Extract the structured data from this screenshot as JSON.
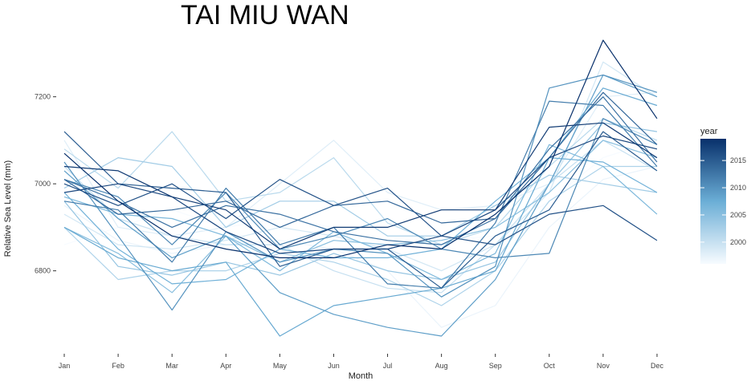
{
  "chart_data": {
    "type": "line",
    "title": "TAI MIU WAN",
    "xlabel": "Month",
    "ylabel": "Relative Sea Level (mm)",
    "categories": [
      "Jan",
      "Feb",
      "Mar",
      "Apr",
      "May",
      "Jun",
      "Jul",
      "Aug",
      "Sep",
      "Oct",
      "Nov",
      "Dec"
    ],
    "ylim": [
      6615,
      7345
    ],
    "yticks": [
      6800,
      7000,
      7200
    ],
    "grid": false,
    "color_scale": {
      "title": "year",
      "min": 1996,
      "max": 2019,
      "ticks": [
        2000,
        2005,
        2010,
        2015
      ],
      "low_color": "#f7fbff",
      "mid_color": "#6baed6",
      "high_color": "#08306b"
    },
    "legend_position": "right",
    "series": [
      {
        "year": 1996,
        "values": [
          6860,
          6900,
          6940,
          6900,
          6920,
          6900,
          6860,
          6870,
          6880,
          6960,
          7060,
          7100
        ]
      },
      {
        "year": 1997,
        "values": [
          6950,
          6870,
          6840,
          6860,
          6870,
          6850,
          6800,
          6670,
          6720,
          6900,
          7010,
          7040
        ]
      },
      {
        "year": 1998,
        "values": [
          7100,
          6900,
          6880,
          6900,
          7000,
          7100,
          6980,
          6940,
          6950,
          7000,
          7200,
          7210
        ]
      },
      {
        "year": 1999,
        "values": [
          6930,
          6860,
          6850,
          6870,
          6900,
          6880,
          6850,
          6800,
          6860,
          6980,
          7280,
          7200
        ]
      },
      {
        "year": 2000,
        "values": [
          7040,
          6920,
          6880,
          6860,
          6860,
          6800,
          6760,
          6750,
          6860,
          7000,
          7100,
          7030
        ]
      },
      {
        "year": 2001,
        "values": [
          7080,
          6990,
          7120,
          6960,
          6980,
          7060,
          6910,
          6860,
          6900,
          7040,
          7150,
          7100
        ]
      },
      {
        "year": 2002,
        "values": [
          6900,
          6780,
          6800,
          6800,
          6840,
          6820,
          6780,
          6720,
          6800,
          6960,
          7040,
          7040
        ]
      },
      {
        "year": 2003,
        "values": [
          6990,
          7060,
          7040,
          6900,
          6960,
          6960,
          6880,
          6880,
          6950,
          7020,
          7000,
          6980
        ]
      },
      {
        "year": 2004,
        "values": [
          6960,
          6810,
          6790,
          6820,
          6790,
          6840,
          6800,
          6780,
          6820,
          7000,
          7140,
          7120
        ]
      },
      {
        "year": 2005,
        "values": [
          6900,
          6840,
          6750,
          6880,
          6820,
          6870,
          6860,
          6870,
          6900,
          6980,
          7100,
          7060
        ]
      },
      {
        "year": 2006,
        "values": [
          6970,
          6930,
          6920,
          6880,
          6800,
          6890,
          6840,
          6780,
          6840,
          7090,
          7040,
          6930
        ]
      },
      {
        "year": 2007,
        "values": [
          6980,
          6850,
          6770,
          6780,
          6850,
          6830,
          6830,
          6850,
          6960,
          7060,
          7050,
          6980
        ]
      },
      {
        "year": 2008,
        "values": [
          6900,
          6830,
          6800,
          6820,
          6650,
          6720,
          6740,
          6760,
          6800,
          7060,
          7220,
          7180
        ]
      },
      {
        "year": 2009,
        "values": [
          7030,
          6920,
          6830,
          6880,
          6750,
          6700,
          6670,
          6650,
          6780,
          7000,
          7250,
          7200
        ]
      },
      {
        "year": 2010,
        "values": [
          7050,
          6880,
          6710,
          6890,
          6820,
          6850,
          6840,
          6740,
          6810,
          7220,
          7250,
          7210
        ]
      },
      {
        "year": 2011,
        "values": [
          7010,
          6970,
          6860,
          6980,
          6850,
          6880,
          6920,
          6850,
          6830,
          6840,
          7150,
          7090
        ]
      },
      {
        "year": 2012,
        "values": [
          6960,
          6940,
          6820,
          6990,
          6860,
          6900,
          6770,
          6760,
          6910,
          7190,
          7180,
          7040
        ]
      },
      {
        "year": 2013,
        "values": [
          7010,
          6960,
          6900,
          6950,
          6930,
          6890,
          6870,
          6860,
          6920,
          7080,
          7200,
          7050
        ]
      },
      {
        "year": 2014,
        "values": [
          7010,
          6930,
          6940,
          6960,
          6900,
          6950,
          6960,
          6910,
          6920,
          7060,
          7210,
          7090
        ]
      },
      {
        "year": 2015,
        "values": [
          7120,
          7000,
          6990,
          6980,
          6810,
          6850,
          6850,
          6760,
          6880,
          6940,
          7120,
          7030
        ]
      },
      {
        "year": 2016,
        "values": [
          7000,
          6950,
          7000,
          6920,
          7010,
          6950,
          6990,
          6880,
          6860,
          6930,
          6950,
          6870
        ]
      },
      {
        "year": 2017,
        "values": [
          6980,
          7000,
          6970,
          6890,
          6840,
          6850,
          6850,
          6880,
          6940,
          7060,
          7110,
          7080
        ]
      },
      {
        "year": 2018,
        "values": [
          7040,
          7030,
          6970,
          6940,
          6850,
          6900,
          6900,
          6940,
          6940,
          7130,
          7140,
          7060
        ]
      },
      {
        "year": 2019,
        "values": [
          7070,
          6960,
          6880,
          6850,
          6830,
          6830,
          6860,
          6850,
          6930,
          7040,
          7330,
          7150
        ]
      }
    ]
  }
}
